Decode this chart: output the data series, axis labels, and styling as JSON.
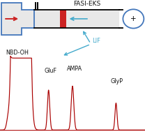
{
  "title": "FASI-EKS",
  "lif_label": "LIF",
  "peak_labels": [
    "NBD-OH",
    "GluF",
    "AMPA",
    "GlyP"
  ],
  "colors": {
    "peak": "#aa0000",
    "diagram_outline": "#4477bb",
    "capillary_fill": "#e8e8e8",
    "sample_zone": "#cc2222",
    "arrow_red": "#cc2222",
    "arrow_blue": "#44aacc",
    "text": "#111111",
    "title_text": "#111111"
  },
  "figure_bg": "#ffffff",
  "fig_w": 2.08,
  "fig_h": 1.89,
  "dpi": 100
}
